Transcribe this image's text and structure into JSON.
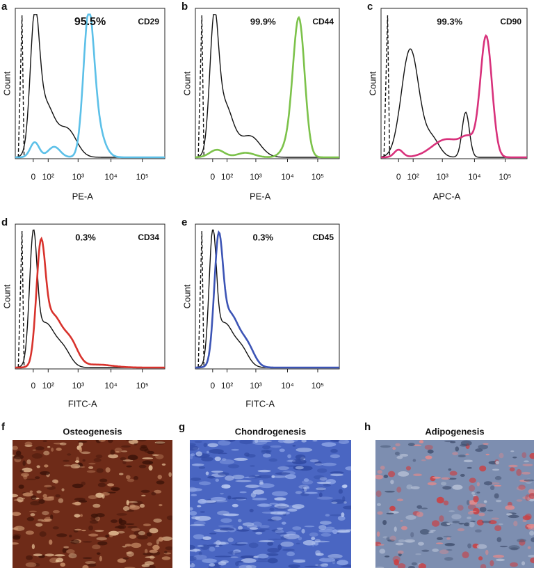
{
  "histograms": [
    {
      "letter": "a",
      "marker": "CD29",
      "percent": "95.5%",
      "x_label": "PE-A",
      "y_label": "Count",
      "x_ticks": [
        "0",
        "10²",
        "10³",
        "10⁴",
        "10⁵"
      ],
      "color": "#5cc0e8"
    },
    {
      "letter": "b",
      "marker": "CD44",
      "percent": "99.9%",
      "x_label": "PE-A",
      "y_label": "Count",
      "x_ticks": [
        "0",
        "10²",
        "10³",
        "10⁴",
        "10⁵"
      ],
      "color": "#7cc24a"
    },
    {
      "letter": "c",
      "marker": "CD90",
      "percent": "99.3%",
      "x_label": "APC-A",
      "y_label": "Count",
      "x_ticks": [
        "0",
        "10²",
        "10³",
        "10⁴",
        "10⁵"
      ],
      "color": "#d8317b"
    },
    {
      "letter": "d",
      "marker": "CD34",
      "percent": "0.3%",
      "x_label": "FITC-A",
      "y_label": "Count",
      "x_ticks": [
        "0",
        "10²",
        "10³",
        "10⁴",
        "10⁵"
      ],
      "color": "#d8322c"
    },
    {
      "letter": "e",
      "marker": "CD45",
      "percent": "0.3%",
      "x_label": "FITC-A",
      "y_label": "Count",
      "x_ticks": [
        "0",
        "10²",
        "10³",
        "10⁴",
        "10⁵"
      ],
      "color": "#3c54b5"
    }
  ],
  "images": [
    {
      "letter": "f",
      "title": "Osteogenesis"
    },
    {
      "letter": "g",
      "title": "Chondrogenesis"
    },
    {
      "letter": "h",
      "title": "Adipogenesis"
    }
  ]
}
